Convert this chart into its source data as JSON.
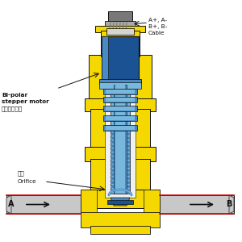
{
  "bg_color": "#ffffff",
  "yellow": "#F5D800",
  "yellow_edge": "#C8A800",
  "blue_dark": "#1A5294",
  "blue_mid": "#4A8AC4",
  "blue_light": "#78B8DC",
  "blue_pale": "#A8D4E8",
  "gray_light": "#D4D4D4",
  "gray_mid": "#AAAAAA",
  "gray_dark": "#787878",
  "gray_pipe": "#C8C8C8",
  "red_line": "#CC0000",
  "black": "#111111",
  "white": "#FFFFFF",
  "off_white": "#F0F0F0",
  "label_cable": "A+, A-\nB+, B-\nCable",
  "label_motor": "Bi-polar\nstepper motor\n双极步进电机",
  "label_orifice_cn": "阀口",
  "label_orifice": "Orifice",
  "label_A": "A",
  "label_B": "B"
}
